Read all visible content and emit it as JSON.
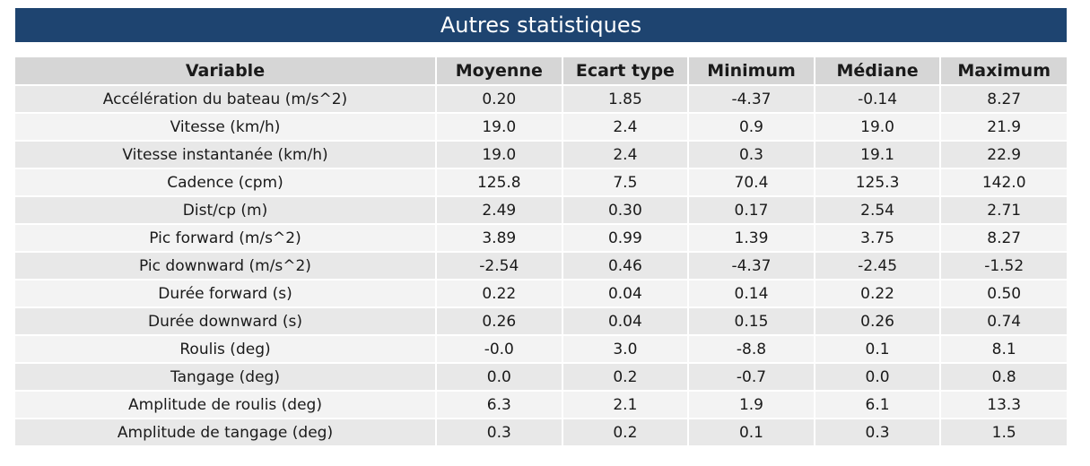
{
  "title": "Autres statistiques",
  "columns": [
    "Variable",
    "Moyenne",
    "Ecart type",
    "Minimum",
    "Médiane",
    "Maximum"
  ],
  "rows": [
    [
      "Accélération du bateau (m/s^2)",
      "0.20",
      "1.85",
      "-4.37",
      "-0.14",
      "8.27"
    ],
    [
      "Vitesse (km/h)",
      "19.0",
      "2.4",
      "0.9",
      "19.0",
      "21.9"
    ],
    [
      "Vitesse instantanée (km/h)",
      "19.0",
      "2.4",
      "0.3",
      "19.1",
      "22.9"
    ],
    [
      "Cadence (cpm)",
      "125.8",
      "7.5",
      "70.4",
      "125.3",
      "142.0"
    ],
    [
      "Dist/cp (m)",
      "2.49",
      "0.30",
      "0.17",
      "2.54",
      "2.71"
    ],
    [
      "Pic forward (m/s^2)",
      "3.89",
      "0.99",
      "1.39",
      "3.75",
      "8.27"
    ],
    [
      "Pic downward (m/s^2)",
      "-2.54",
      "0.46",
      "-4.37",
      "-2.45",
      "-1.52"
    ],
    [
      "Durée forward (s)",
      "0.22",
      "0.04",
      "0.14",
      "0.22",
      "0.50"
    ],
    [
      "Durée downward (s)",
      "0.26",
      "0.04",
      "0.15",
      "0.26",
      "0.74"
    ],
    [
      "Roulis (deg)",
      "-0.0",
      "3.0",
      "-8.8",
      "0.1",
      "8.1"
    ],
    [
      "Tangage (deg)",
      "0.0",
      "0.2",
      "-0.7",
      "0.0",
      "0.8"
    ],
    [
      "Amplitude de roulis (deg)",
      "6.3",
      "2.1",
      "1.9",
      "6.1",
      "13.3"
    ],
    [
      "Amplitude de tangage (deg)",
      "0.3",
      "0.2",
      "0.1",
      "0.3",
      "1.5"
    ]
  ],
  "colors": {
    "banner_background": "#1e4470",
    "header_background": "#d6d6d6",
    "row_odd": "#e8e8e8",
    "row_even": "#f3f3f3"
  }
}
